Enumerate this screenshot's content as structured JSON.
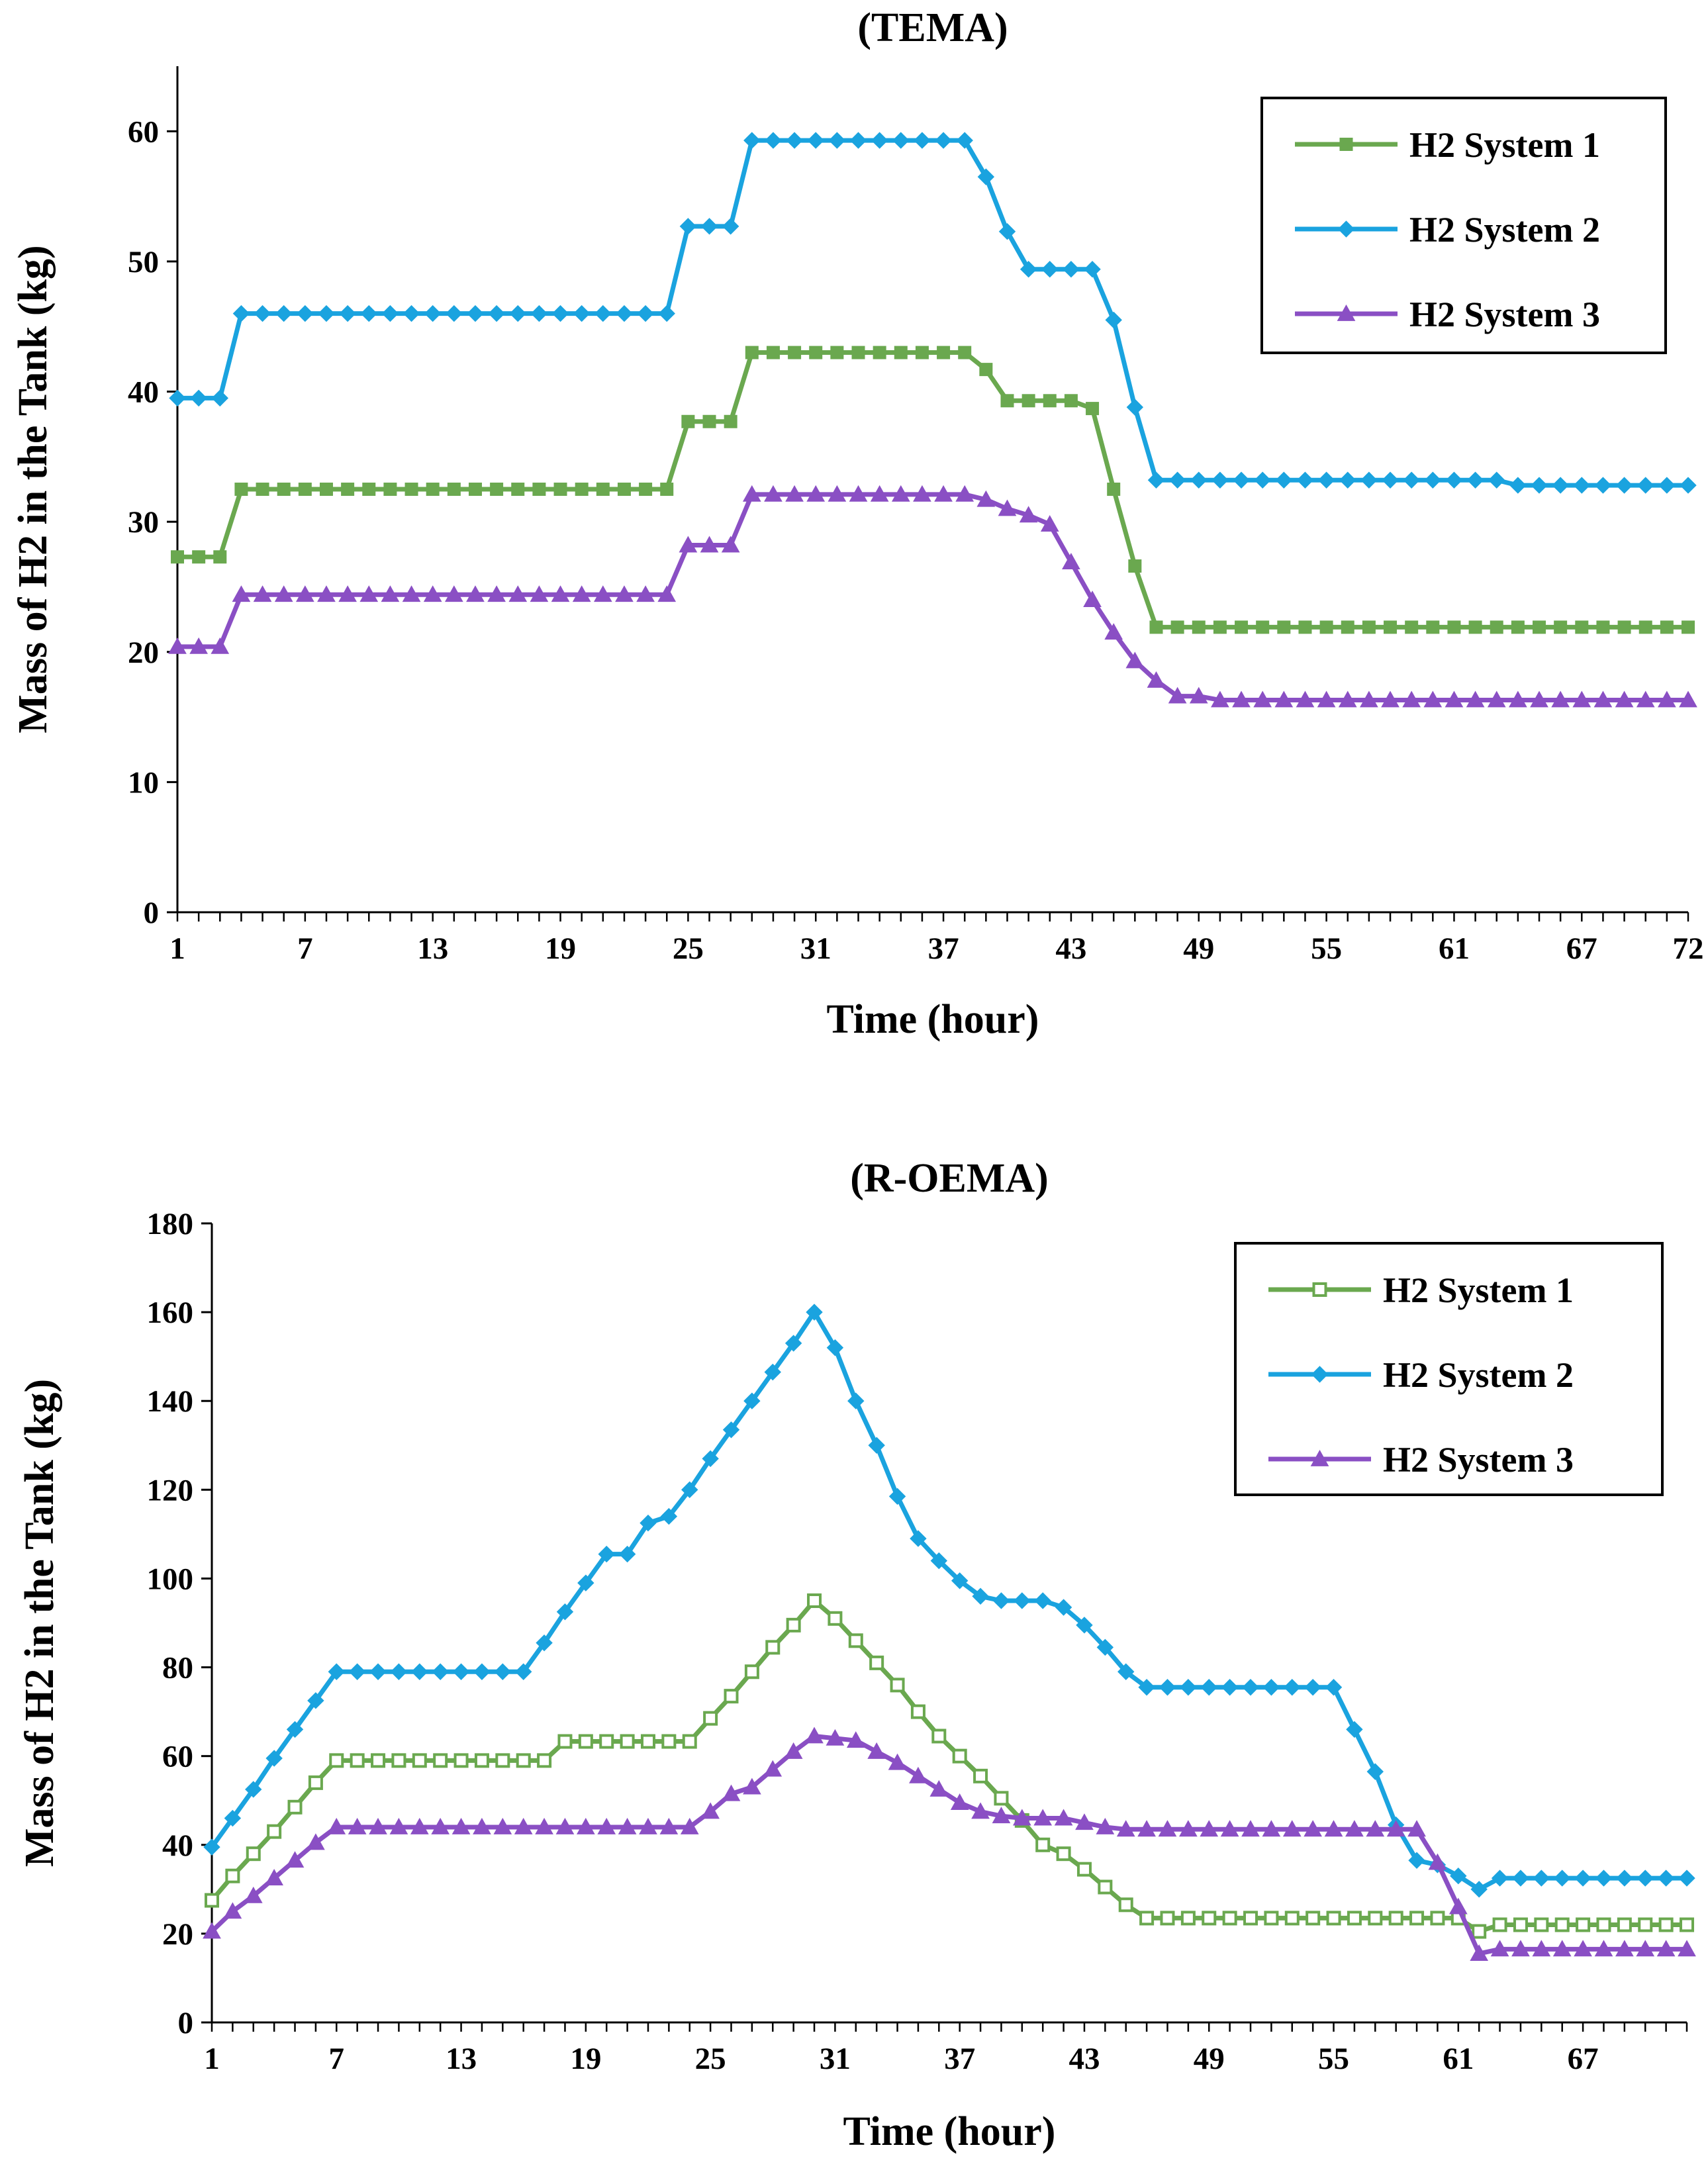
{
  "chart_data": [
    {
      "type": "line",
      "title": "(TEMA)",
      "xlabel": "Time (hour)",
      "ylabel": "Mass of H2 in the Tank (kg)",
      "xlim": [
        1,
        72
      ],
      "ylim": [
        0,
        65
      ],
      "xticks": [
        1,
        7,
        13,
        19,
        25,
        31,
        37,
        43,
        49,
        55,
        61,
        67,
        72
      ],
      "yticks": [
        0,
        10,
        20,
        30,
        40,
        50,
        60
      ],
      "legend": "top-right",
      "grid": false,
      "series": [
        {
          "name": "H2 System 1",
          "color": "#6aa84f",
          "marker": "square-filled",
          "values": [
            27.3,
            27.3,
            27.3,
            32.5,
            32.5,
            32.5,
            32.5,
            32.5,
            32.5,
            32.5,
            32.5,
            32.5,
            32.5,
            32.5,
            32.5,
            32.5,
            32.5,
            32.5,
            32.5,
            32.5,
            32.5,
            32.5,
            32.5,
            32.5,
            37.7,
            37.7,
            37.7,
            43.0,
            43.0,
            43.0,
            43.0,
            43.0,
            43.0,
            43.0,
            43.0,
            43.0,
            43.0,
            43.0,
            41.7,
            39.3,
            39.3,
            39.3,
            39.3,
            38.7,
            32.5,
            26.6,
            21.9,
            21.9,
            21.9,
            21.9,
            21.9,
            21.9,
            21.9,
            21.9,
            21.9,
            21.9,
            21.9,
            21.9,
            21.9,
            21.9,
            21.9,
            21.9,
            21.9,
            21.9,
            21.9,
            21.9,
            21.9,
            21.9,
            21.9,
            21.9,
            21.9,
            21.9
          ]
        },
        {
          "name": "H2 System 2",
          "color": "#1aa3df",
          "marker": "diamond-filled",
          "values": [
            39.5,
            39.5,
            39.5,
            46.0,
            46.0,
            46.0,
            46.0,
            46.0,
            46.0,
            46.0,
            46.0,
            46.0,
            46.0,
            46.0,
            46.0,
            46.0,
            46.0,
            46.0,
            46.0,
            46.0,
            46.0,
            46.0,
            46.0,
            46.0,
            52.7,
            52.7,
            52.7,
            59.3,
            59.3,
            59.3,
            59.3,
            59.3,
            59.3,
            59.3,
            59.3,
            59.3,
            59.3,
            59.3,
            56.5,
            52.3,
            49.4,
            49.4,
            49.4,
            49.4,
            45.5,
            38.8,
            33.2,
            33.2,
            33.2,
            33.2,
            33.2,
            33.2,
            33.2,
            33.2,
            33.2,
            33.2,
            33.2,
            33.2,
            33.2,
            33.2,
            33.2,
            33.2,
            33.2,
            32.8,
            32.8,
            32.8,
            32.8,
            32.8,
            32.8,
            32.8,
            32.8,
            32.8
          ]
        },
        {
          "name": "H2 System 3",
          "color": "#8a4fc4",
          "marker": "triangle-filled",
          "values": [
            20.4,
            20.4,
            20.4,
            24.4,
            24.4,
            24.4,
            24.4,
            24.4,
            24.4,
            24.4,
            24.4,
            24.4,
            24.4,
            24.4,
            24.4,
            24.4,
            24.4,
            24.4,
            24.4,
            24.4,
            24.4,
            24.4,
            24.4,
            24.4,
            28.2,
            28.2,
            28.2,
            32.1,
            32.1,
            32.1,
            32.1,
            32.1,
            32.1,
            32.1,
            32.1,
            32.1,
            32.1,
            32.1,
            31.7,
            31.0,
            30.5,
            29.8,
            26.9,
            24.0,
            21.5,
            19.3,
            17.8,
            16.6,
            16.6,
            16.3,
            16.3,
            16.3,
            16.3,
            16.3,
            16.3,
            16.3,
            16.3,
            16.3,
            16.3,
            16.3,
            16.3,
            16.3,
            16.3,
            16.3,
            16.3,
            16.3,
            16.3,
            16.3,
            16.3,
            16.3,
            16.3,
            16.3
          ]
        }
      ]
    },
    {
      "type": "line",
      "title": "(R-OEMA)",
      "xlabel": "Time (hour)",
      "ylabel": "Mass of H2 in the Tank (kg)",
      "xlim": [
        1,
        72
      ],
      "ylim": [
        0,
        180
      ],
      "xticks": [
        1,
        7,
        13,
        19,
        25,
        31,
        37,
        43,
        49,
        55,
        61,
        67
      ],
      "yticks": [
        0,
        20,
        40,
        60,
        80,
        100,
        120,
        140,
        160,
        180
      ],
      "legend": "top-right",
      "grid": false,
      "series": [
        {
          "name": "H2 System 1",
          "color": "#6aa84f",
          "marker": "square-open",
          "values": [
            27.5,
            33.0,
            38.0,
            43.0,
            48.5,
            54.0,
            59.0,
            59.0,
            59.0,
            59.0,
            59.0,
            59.0,
            59.0,
            59.0,
            59.0,
            59.0,
            59.0,
            63.3,
            63.3,
            63.3,
            63.3,
            63.3,
            63.3,
            63.3,
            68.5,
            73.5,
            79.0,
            84.5,
            89.5,
            95.0,
            91.0,
            86.0,
            81.0,
            76.0,
            70.0,
            64.5,
            60.0,
            55.5,
            50.5,
            45.5,
            40.0,
            38.0,
            34.5,
            30.5,
            26.5,
            23.5,
            23.5,
            23.5,
            23.5,
            23.5,
            23.5,
            23.5,
            23.5,
            23.5,
            23.5,
            23.5,
            23.5,
            23.5,
            23.5,
            23.5,
            23.5,
            20.5,
            22.0,
            22.0,
            22.0,
            22.0,
            22.0,
            22.0,
            22.0,
            22.0,
            22.0,
            22.0
          ]
        },
        {
          "name": "H2 System 2",
          "color": "#1aa3df",
          "marker": "diamond-filled",
          "values": [
            39.5,
            46.0,
            52.5,
            59.5,
            66.0,
            72.5,
            79.0,
            79.0,
            79.0,
            79.0,
            79.0,
            79.0,
            79.0,
            79.0,
            79.0,
            79.0,
            85.5,
            92.5,
            99.0,
            105.5,
            105.5,
            112.5,
            114.0,
            120.0,
            127.0,
            133.5,
            140.0,
            146.5,
            153.0,
            160.0,
            152.0,
            140.0,
            130.0,
            118.5,
            109.0,
            104.0,
            99.5,
            96.0,
            95.0,
            95.0,
            95.0,
            93.5,
            89.5,
            84.5,
            79.0,
            75.5,
            75.5,
            75.5,
            75.5,
            75.5,
            75.5,
            75.5,
            75.5,
            75.5,
            75.5,
            66.0,
            56.5,
            44.5,
            36.5,
            35.5,
            33.0,
            30.0,
            32.5,
            32.5,
            32.5,
            32.5,
            32.5,
            32.5,
            32.5,
            32.5,
            32.5,
            32.5
          ]
        },
        {
          "name": "H2 System 3",
          "color": "#8a4fc4",
          "marker": "triangle-filled",
          "values": [
            20.5,
            25.0,
            28.5,
            32.5,
            36.5,
            40.5,
            44.0,
            44.0,
            44.0,
            44.0,
            44.0,
            44.0,
            44.0,
            44.0,
            44.0,
            44.0,
            44.0,
            44.0,
            44.0,
            44.0,
            44.0,
            44.0,
            44.0,
            44.0,
            47.5,
            51.5,
            53.0,
            57.0,
            61.0,
            64.5,
            64.0,
            63.5,
            61.0,
            58.5,
            55.5,
            52.5,
            49.5,
            47.5,
            46.5,
            46.0,
            46.0,
            46.0,
            45.0,
            44.0,
            43.5,
            43.5,
            43.5,
            43.5,
            43.5,
            43.5,
            43.5,
            43.5,
            43.5,
            43.5,
            43.5,
            43.5,
            43.5,
            43.5,
            43.5,
            36.0,
            26.0,
            15.5,
            16.5,
            16.5,
            16.5,
            16.5,
            16.5,
            16.5,
            16.5,
            16.5,
            16.5,
            16.5
          ]
        }
      ]
    }
  ]
}
